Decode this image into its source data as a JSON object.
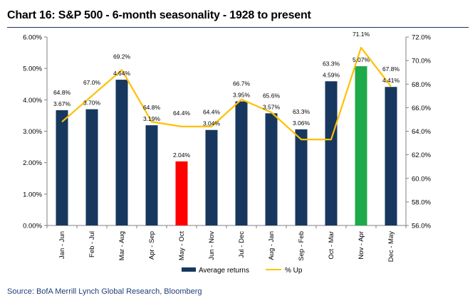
{
  "title": "Chart 16: S&P 500 - 6-month seasonality - 1928 to present",
  "source": "Source: BofA Merrill Lynch Global Research, Bloomberg",
  "chart_data": {
    "type": "bar",
    "categories": [
      "Jan - Jun",
      "Feb - Jul",
      "Mar - Aug",
      "Apr - Sep",
      "May - Oct",
      "Jun - Nov",
      "Jul - Dec",
      "Aug - Jan",
      "Sep - Feb",
      "Oct - Mar",
      "Nov - Apr",
      "Dec - May"
    ],
    "series": [
      {
        "name": "Average returns",
        "type": "bar",
        "axis": "left",
        "values": [
          3.67,
          3.7,
          4.64,
          3.19,
          2.04,
          3.04,
          3.95,
          3.57,
          3.06,
          4.59,
          5.07,
          4.41
        ],
        "labels": [
          "3.67%",
          "3.70%",
          "4.64%",
          "3.19%",
          "2.04%",
          "3.04%",
          "3.95%",
          "3.57%",
          "3.06%",
          "4.59%",
          "5.07%",
          "4.41%"
        ],
        "color": "#17375e",
        "highlight_colors": {
          "4": "#ff0000",
          "10": "#1ea94a"
        }
      },
      {
        "name": "% Up",
        "type": "line",
        "axis": "right",
        "values": [
          64.8,
          67.0,
          69.2,
          64.8,
          64.4,
          64.4,
          66.7,
          65.6,
          63.3,
          63.3,
          71.1,
          67.8
        ],
        "labels": [
          "64.8%",
          "67.0%",
          "69.2%",
          "64.8%",
          "64.4%",
          "64.4%",
          "66.7%",
          "65.6%",
          "63.3%",
          "63.3%",
          "71.1%",
          "67.8%"
        ],
        "color": "#ffc000"
      }
    ],
    "left_axis": {
      "ylim": [
        0,
        6
      ],
      "ticks": [
        "0.00%",
        "1.00%",
        "2.00%",
        "3.00%",
        "4.00%",
        "5.00%",
        "6.00%"
      ]
    },
    "right_axis": {
      "ylim": [
        56,
        72
      ],
      "ticks": [
        "56.0%",
        "58.0%",
        "60.0%",
        "62.0%",
        "64.0%",
        "66.0%",
        "68.0%",
        "70.0%",
        "72.0%"
      ]
    },
    "legend_position": "bottom-center",
    "grid": false
  }
}
